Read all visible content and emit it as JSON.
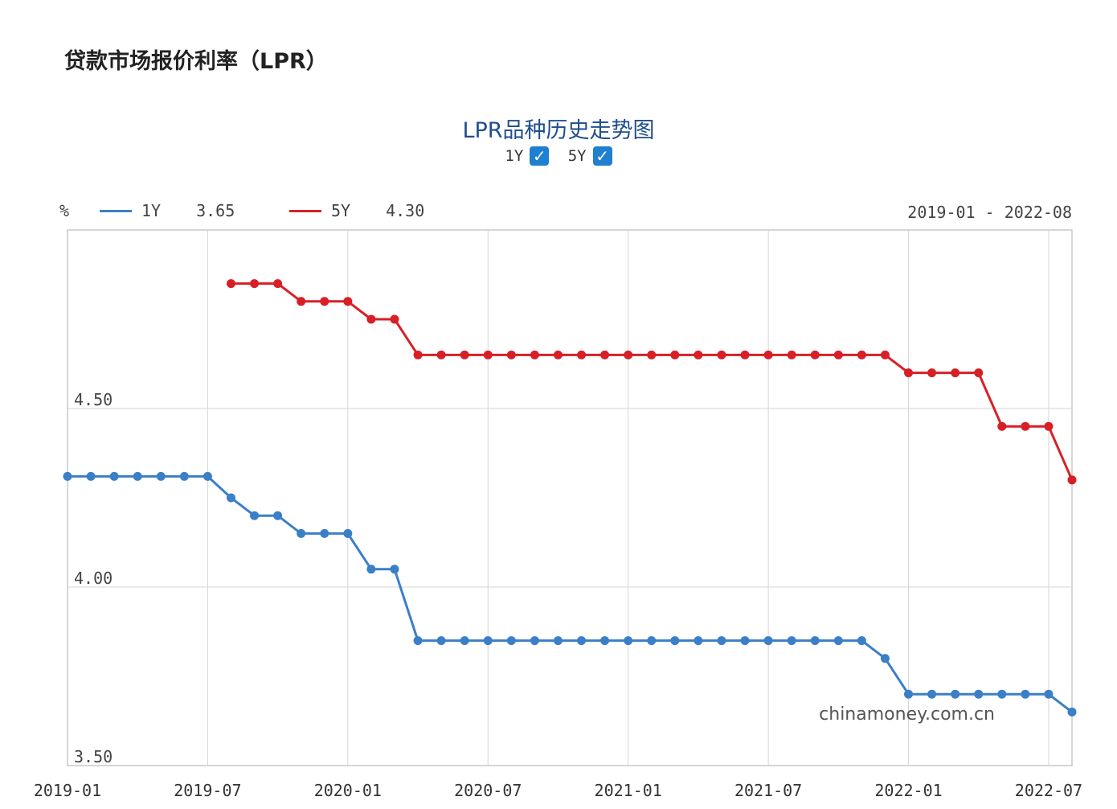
{
  "header": {
    "title": "贷款市场报价利率（LPR）"
  },
  "toggles": [
    {
      "label": "1Y",
      "checked": true,
      "mark": "✓"
    },
    {
      "label": "5Y",
      "checked": true,
      "mark": "✓"
    }
  ],
  "legend": {
    "unit": "%",
    "items": [
      {
        "name": "1Y",
        "value": "3.65",
        "color": "#3a7fc8"
      },
      {
        "name": "5Y",
        "value": "4.30",
        "color": "#d81f26"
      }
    ]
  },
  "range_label": "2019-01 - 2022-08",
  "watermark": "chinamoney.com.cn",
  "chart_data": {
    "type": "line",
    "title": "LPR品种历史走势图",
    "x_tick_labels": [
      "2019-01",
      "2019-07",
      "2020-01",
      "2020-07",
      "2021-01",
      "2021-07",
      "2022-01",
      "2022-07"
    ],
    "y_tick_labels": [
      "3.50",
      "4.00",
      "4.50"
    ],
    "ylim": [
      3.5,
      5.0
    ],
    "grid": true,
    "legend_position": "top-left",
    "series": [
      {
        "name": "1Y",
        "color": "#3a7fc8",
        "x": [
          "2019-01",
          "2019-02",
          "2019-03",
          "2019-04",
          "2019-05",
          "2019-06",
          "2019-07",
          "2019-08",
          "2019-09",
          "2019-10",
          "2019-11",
          "2019-12",
          "2020-01",
          "2020-02",
          "2020-03",
          "2020-04",
          "2020-05",
          "2020-06",
          "2020-07",
          "2020-08",
          "2020-09",
          "2020-10",
          "2020-11",
          "2020-12",
          "2021-01",
          "2021-02",
          "2021-03",
          "2021-04",
          "2021-05",
          "2021-06",
          "2021-07",
          "2021-08",
          "2021-09",
          "2021-10",
          "2021-11",
          "2021-12",
          "2022-01",
          "2022-02",
          "2022-03",
          "2022-04",
          "2022-05",
          "2022-06",
          "2022-07",
          "2022-08"
        ],
        "values": [
          4.31,
          4.31,
          4.31,
          4.31,
          4.31,
          4.31,
          4.31,
          4.25,
          4.2,
          4.2,
          4.15,
          4.15,
          4.15,
          4.05,
          4.05,
          3.85,
          3.85,
          3.85,
          3.85,
          3.85,
          3.85,
          3.85,
          3.85,
          3.85,
          3.85,
          3.85,
          3.85,
          3.85,
          3.85,
          3.85,
          3.85,
          3.85,
          3.85,
          3.85,
          3.85,
          3.8,
          3.7,
          3.7,
          3.7,
          3.7,
          3.7,
          3.7,
          3.7,
          3.65
        ]
      },
      {
        "name": "5Y",
        "color": "#d81f26",
        "x": [
          "2019-08",
          "2019-09",
          "2019-10",
          "2019-11",
          "2019-12",
          "2020-01",
          "2020-02",
          "2020-03",
          "2020-04",
          "2020-05",
          "2020-06",
          "2020-07",
          "2020-08",
          "2020-09",
          "2020-10",
          "2020-11",
          "2020-12",
          "2021-01",
          "2021-02",
          "2021-03",
          "2021-04",
          "2021-05",
          "2021-06",
          "2021-07",
          "2021-08",
          "2021-09",
          "2021-10",
          "2021-11",
          "2021-12",
          "2022-01",
          "2022-02",
          "2022-03",
          "2022-04",
          "2022-05",
          "2022-06",
          "2022-07",
          "2022-08"
        ],
        "values": [
          4.85,
          4.85,
          4.85,
          4.8,
          4.8,
          4.8,
          4.75,
          4.75,
          4.65,
          4.65,
          4.65,
          4.65,
          4.65,
          4.65,
          4.65,
          4.65,
          4.65,
          4.65,
          4.65,
          4.65,
          4.65,
          4.65,
          4.65,
          4.65,
          4.65,
          4.65,
          4.65,
          4.65,
          4.65,
          4.6,
          4.6,
          4.6,
          4.6,
          4.45,
          4.45,
          4.45,
          4.3
        ]
      }
    ]
  }
}
